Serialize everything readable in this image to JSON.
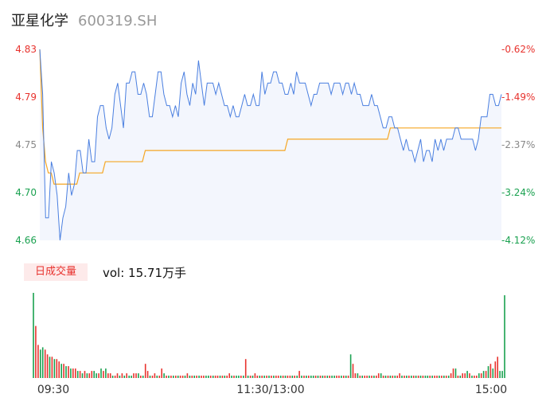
{
  "header": {
    "name": "亚星化学",
    "code": "600319.SH"
  },
  "volume_panel": {
    "tab_label": "日成交量",
    "vol_prefix": "vol: ",
    "vol_value": "15.71万手"
  },
  "colors": {
    "price_line": "#4a7fe0",
    "avg_line": "#f5a623",
    "area_fill": "#f3f6fd",
    "up": "#e8332e",
    "down": "#1aa150",
    "neutral": "#888888"
  },
  "chart_data": [
    {
      "type": "line",
      "title": "",
      "ylim": [
        4.66,
        4.83
      ],
      "left_ticks": [
        "4.83",
        "4.79",
        "4.75",
        "4.70",
        "4.66"
      ],
      "right_ticks": [
        "-0.62%",
        "-1.49%",
        "-2.37%",
        "-3.24%",
        "-4.12%"
      ],
      "x_ticks": [
        "09:30",
        "11:30/13:00",
        "15:00"
      ],
      "series": [
        {
          "values": [
            4.83,
            4.79,
            4.68,
            4.68,
            4.73,
            4.72,
            4.7,
            4.66,
            4.68,
            4.69,
            4.72,
            4.7,
            4.71,
            4.74,
            4.74,
            4.72,
            4.72,
            4.75,
            4.73,
            4.73,
            4.77,
            4.78,
            4.78,
            4.76,
            4.75,
            4.76,
            4.79,
            4.8,
            4.78,
            4.76,
            4.8,
            4.8,
            4.81,
            4.81,
            4.79,
            4.79,
            4.8,
            4.79,
            4.77,
            4.77,
            4.79,
            4.81,
            4.81,
            4.79,
            4.78,
            4.78,
            4.77,
            4.78,
            4.77,
            4.8,
            4.81,
            4.79,
            4.78,
            4.8,
            4.79,
            4.82,
            4.8,
            4.78,
            4.8,
            4.8,
            4.8,
            4.79,
            4.8,
            4.79,
            4.78,
            4.78,
            4.77,
            4.78,
            4.77,
            4.77,
            4.78,
            4.79,
            4.78,
            4.78,
            4.79,
            4.78,
            4.78,
            4.81,
            4.79,
            4.8,
            4.8,
            4.81,
            4.81,
            4.8,
            4.8,
            4.79,
            4.79,
            4.8,
            4.79,
            4.81,
            4.8,
            4.8,
            4.8,
            4.79,
            4.78,
            4.79,
            4.79,
            4.8,
            4.8,
            4.8,
            4.8,
            4.79,
            4.8,
            4.8,
            4.8,
            4.79,
            4.8,
            4.8,
            4.79,
            4.8,
            4.79,
            4.79,
            4.78,
            4.78,
            4.78,
            4.79,
            4.78,
            4.78,
            4.77,
            4.76,
            4.76,
            4.77,
            4.77,
            4.76,
            4.76,
            4.75,
            4.74,
            4.75,
            4.74,
            4.74,
            4.73,
            4.74,
            4.75,
            4.73,
            4.74,
            4.74,
            4.73,
            4.75,
            4.74,
            4.75,
            4.74,
            4.75,
            4.75,
            4.75,
            4.76,
            4.76,
            4.75,
            4.75,
            4.75,
            4.75,
            4.75,
            4.74,
            4.75,
            4.77,
            4.77,
            4.77,
            4.79,
            4.79,
            4.78,
            4.78,
            4.79
          ]
        },
        {
          "values": [
            4.83,
            4.76,
            4.73,
            4.72,
            4.72,
            4.71,
            4.71,
            4.71,
            4.71,
            4.71,
            4.71,
            4.71,
            4.71,
            4.71,
            4.72,
            4.72,
            4.72,
            4.72,
            4.72,
            4.72,
            4.72,
            4.72,
            4.72,
            4.73,
            4.73,
            4.73,
            4.73,
            4.73,
            4.73,
            4.73,
            4.73,
            4.73,
            4.73,
            4.73,
            4.73,
            4.73,
            4.73,
            4.74,
            4.74,
            4.74,
            4.74,
            4.74,
            4.74,
            4.74,
            4.74,
            4.74,
            4.74,
            4.74,
            4.74,
            4.74,
            4.74,
            4.74,
            4.74,
            4.74,
            4.74,
            4.74,
            4.74,
            4.74,
            4.74,
            4.74,
            4.74,
            4.74,
            4.74,
            4.74,
            4.74,
            4.74,
            4.74,
            4.74,
            4.74,
            4.74,
            4.74,
            4.74,
            4.74,
            4.74,
            4.74,
            4.74,
            4.74,
            4.74,
            4.74,
            4.74,
            4.74,
            4.74,
            4.74,
            4.74,
            4.74,
            4.74,
            4.74,
            4.75,
            4.75,
            4.75,
            4.75,
            4.75,
            4.75,
            4.75,
            4.75,
            4.75,
            4.75,
            4.75,
            4.75,
            4.75,
            4.75,
            4.75,
            4.75,
            4.75,
            4.75,
            4.75,
            4.75,
            4.75,
            4.75,
            4.75,
            4.75,
            4.75,
            4.75,
            4.75,
            4.75,
            4.75,
            4.75,
            4.75,
            4.75,
            4.75,
            4.75,
            4.75,
            4.75,
            4.76,
            4.76,
            4.76,
            4.76,
            4.76,
            4.76,
            4.76,
            4.76,
            4.76,
            4.76,
            4.76,
            4.76,
            4.76,
            4.76,
            4.76,
            4.76,
            4.76,
            4.76,
            4.76,
            4.76,
            4.76,
            4.76,
            4.76,
            4.76,
            4.76,
            4.76,
            4.76,
            4.76,
            4.76,
            4.76,
            4.76,
            4.76,
            4.76,
            4.76,
            4.76,
            4.76,
            4.76,
            4.76,
            4.76,
            4.76
          ]
        }
      ]
    },
    {
      "type": "bar",
      "title": "",
      "series": [
        {
          "values": [
            36,
            22,
            14,
            12,
            13,
            12,
            10,
            9,
            9,
            8,
            8,
            7,
            6,
            6,
            5,
            5,
            4,
            4,
            4,
            3,
            3,
            2,
            3,
            2,
            2,
            3,
            3,
            2,
            2,
            4,
            3,
            4,
            2,
            2,
            1,
            1,
            2,
            1,
            2,
            1,
            2,
            1,
            1,
            2,
            2,
            2,
            1,
            1,
            6,
            3,
            1,
            1,
            2,
            1,
            1,
            4,
            2,
            1,
            1,
            1,
            1,
            1,
            1,
            1,
            1,
            1,
            2,
            1,
            1,
            1,
            1,
            1,
            1,
            1,
            1,
            1,
            1,
            1,
            1,
            1,
            1,
            1,
            1,
            1,
            2,
            1,
            1,
            1,
            1,
            1,
            1,
            8,
            1,
            1,
            1,
            2,
            1,
            1,
            1,
            1,
            1,
            1,
            1,
            1,
            1,
            1,
            1,
            1,
            1,
            1,
            1,
            1,
            1,
            1,
            3,
            1,
            1,
            1,
            1,
            1,
            1,
            1,
            1,
            1,
            1,
            1,
            1,
            1,
            1,
            1,
            1,
            1,
            1,
            1,
            1,
            1,
            10,
            6,
            2,
            2,
            1,
            1,
            1,
            1,
            1,
            1,
            1,
            1,
            2,
            2,
            1,
            1,
            1,
            1,
            1,
            1,
            1,
            2,
            1,
            1,
            1,
            1,
            1,
            1,
            1,
            1,
            1,
            1,
            1,
            1,
            1,
            1,
            1,
            1,
            1,
            1,
            1,
            1,
            1,
            2,
            4,
            4,
            1,
            1,
            2,
            2,
            3,
            2,
            1,
            1,
            1,
            2,
            2,
            3,
            3,
            5,
            6,
            4,
            7,
            9,
            3,
            3,
            35
          ],
          "colors": [
            "g",
            "r",
            "r",
            "g",
            "g",
            "r",
            "r",
            "g",
            "r",
            "g",
            "r",
            "r",
            "g",
            "r",
            "g",
            "r",
            "g",
            "r",
            "r",
            "g",
            "r",
            "g",
            "r",
            "g",
            "r",
            "r",
            "g",
            "g",
            "r",
            "g",
            "r",
            "g",
            "r",
            "r",
            "g",
            "r",
            "r",
            "g",
            "r",
            "g",
            "r",
            "g",
            "g",
            "r",
            "r",
            "g",
            "r",
            "g",
            "r",
            "r",
            "g",
            "r",
            "r",
            "g",
            "r",
            "r",
            "g",
            "r",
            "g",
            "r",
            "g",
            "r",
            "g",
            "r",
            "r",
            "g",
            "r",
            "g",
            "r",
            "g",
            "r",
            "g",
            "r",
            "r",
            "g",
            "g",
            "r",
            "g",
            "r",
            "r",
            "g",
            "r",
            "g",
            "r",
            "r",
            "g",
            "r",
            "g",
            "g",
            "r",
            "g",
            "r",
            "g",
            "r",
            "g",
            "r",
            "r",
            "g",
            "r",
            "g",
            "r",
            "g",
            "r",
            "g",
            "r",
            "r",
            "g",
            "r",
            "g",
            "r",
            "r",
            "g",
            "r",
            "g",
            "r",
            "g",
            "r",
            "g",
            "r",
            "g",
            "g",
            "r",
            "g",
            "r",
            "g",
            "r",
            "g",
            "r",
            "g",
            "g",
            "r",
            "r",
            "g",
            "r",
            "g",
            "r",
            "g",
            "r",
            "r",
            "g",
            "r",
            "g",
            "r",
            "r",
            "g",
            "r",
            "g",
            "r",
            "r",
            "g",
            "r",
            "g",
            "r",
            "g",
            "r",
            "g",
            "r",
            "r",
            "g",
            "r",
            "g",
            "r",
            "g",
            "r",
            "g",
            "r",
            "g",
            "r",
            "g",
            "g",
            "r",
            "g",
            "r",
            "r",
            "g",
            "r",
            "g",
            "r",
            "g",
            "r",
            "r",
            "g",
            "r",
            "g",
            "r",
            "r",
            "g",
            "r",
            "g",
            "r",
            "r",
            "g",
            "r",
            "g",
            "r",
            "g",
            "r",
            "g",
            "r",
            "r",
            "g"
          ]
        }
      ]
    }
  ]
}
